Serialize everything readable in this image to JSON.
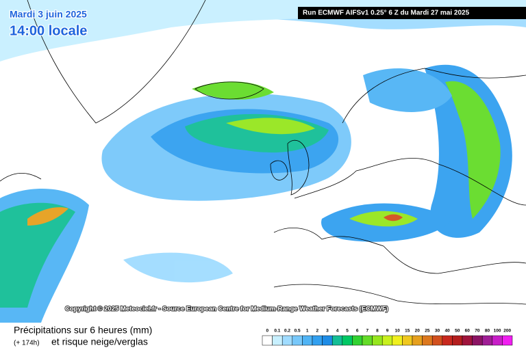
{
  "header": {
    "date": "Mardi 3 juin 2025",
    "time": "14:00 locale",
    "run": "Run ECMWF AIFSv1 0.25° 6 Z du Mardi 27 mai 2025"
  },
  "copyright": "Copyright © 2025 Meteociel.fr - Source European Centre for Medium-Range Weather Forecasts (ECMWF)",
  "legend": {
    "title": "Précipitations sur 6 heures (mm)",
    "lead": "(+ 174h)",
    "subtitle": "et risque neige/verglas",
    "labels": [
      0,
      0.1,
      0.2,
      0.5,
      1,
      2,
      3,
      4,
      5,
      6,
      7,
      8,
      9,
      10,
      15,
      20,
      25,
      30,
      40,
      50,
      60,
      70,
      80,
      100,
      200
    ],
    "colors": [
      "#ffffff",
      "#c8f0ff",
      "#a0dcff",
      "#78c8fa",
      "#50b4f5",
      "#32a0f0",
      "#1e8ce6",
      "#14be96",
      "#00c864",
      "#32d232",
      "#64dc28",
      "#96e61e",
      "#c8f01e",
      "#f0f01e",
      "#f0c81e",
      "#e6a01e",
      "#dc781e",
      "#d2501e",
      "#c8281e",
      "#b41e1e",
      "#a0143c",
      "#8c1464",
      "#a01e96",
      "#c81ec8",
      "#f01ef0"
    ]
  }
}
